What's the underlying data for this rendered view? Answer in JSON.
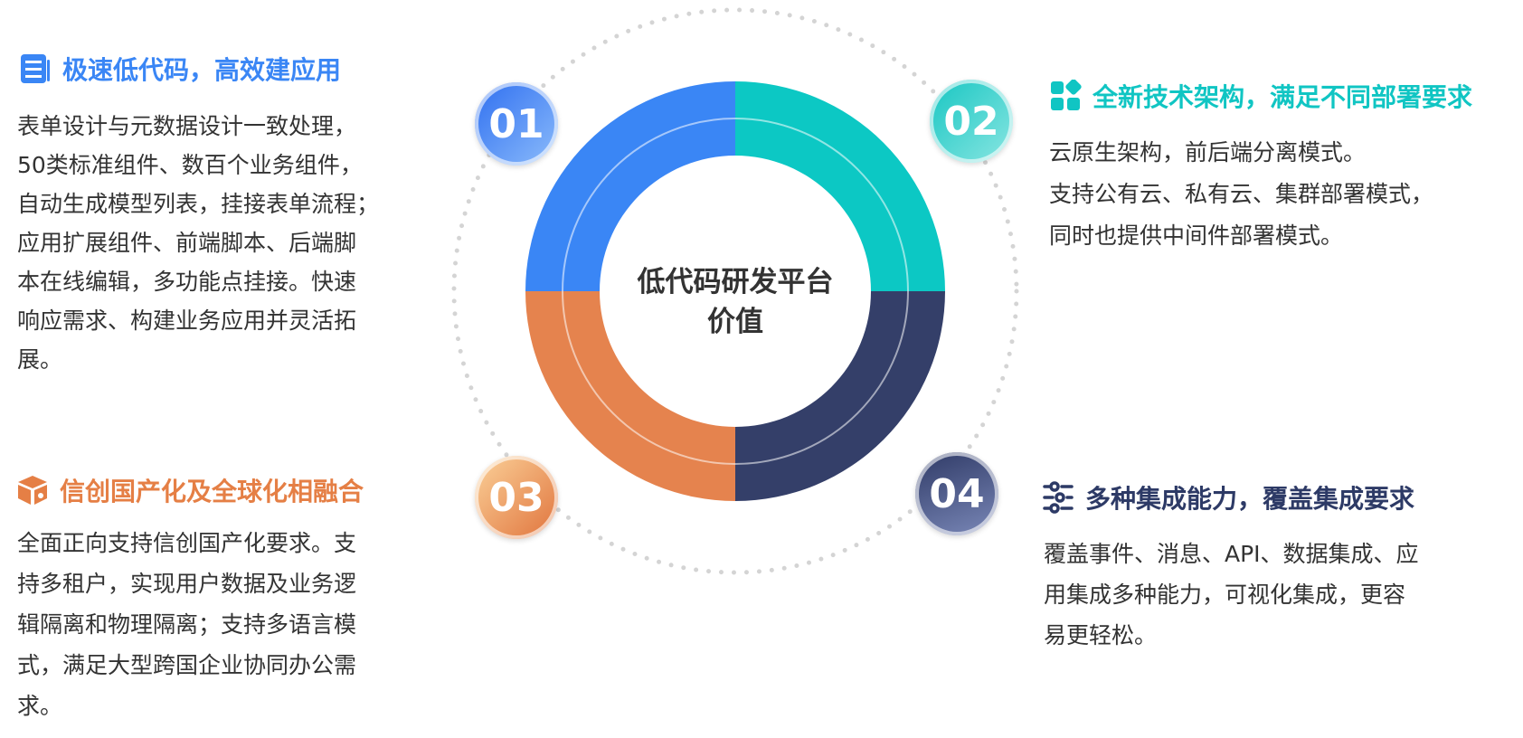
{
  "center": {
    "line1": "低代码研发平台",
    "line2": "价值"
  },
  "colors": {
    "blue": "#3a86f5",
    "teal": "#0cc8c4",
    "navy": "#343f69",
    "orange": "#e5834e"
  },
  "sections": [
    {
      "number": "01",
      "icon": "form-list-icon",
      "title": "极速低代码，高效建应用",
      "lines": [
        "表单设计与元数据设计一致处理，",
        "50类标准组件、数百个业务组件，",
        "自动生成模型列表，挂接表单流程；",
        "应用扩展组件、前端脚本、后端脚",
        "本在线编辑，多功能点挂接。快速",
        "响应需求、构建业务应用并灵活拓",
        "展。"
      ]
    },
    {
      "number": "02",
      "icon": "grid-blocks-icon",
      "title": "全新技术架构，满足不同部署要求",
      "lines": [
        "云原生架构，前后端分离模式。",
        "支持公有云、私有云、集群部署模式，",
        "同时也提供中间件部署模式。"
      ]
    },
    {
      "number": "03",
      "icon": "box-package-icon",
      "title": "信创国产化及全球化相融合",
      "lines": [
        "全面正向支持信创国产化要求。支",
        "持多租户，实现用户数据及业务逻",
        "辑隔离和物理隔离；支持多语言模",
        "式，满足大型跨国企业协同办公需",
        "求。"
      ]
    },
    {
      "number": "04",
      "icon": "sliders-icon",
      "title": "多种集成能力，覆盖集成要求",
      "lines": [
        "覆盖事件、消息、API、数据集成、应",
        "用集成多种能力，可视化集成，更容",
        "易更轻松。"
      ]
    }
  ]
}
